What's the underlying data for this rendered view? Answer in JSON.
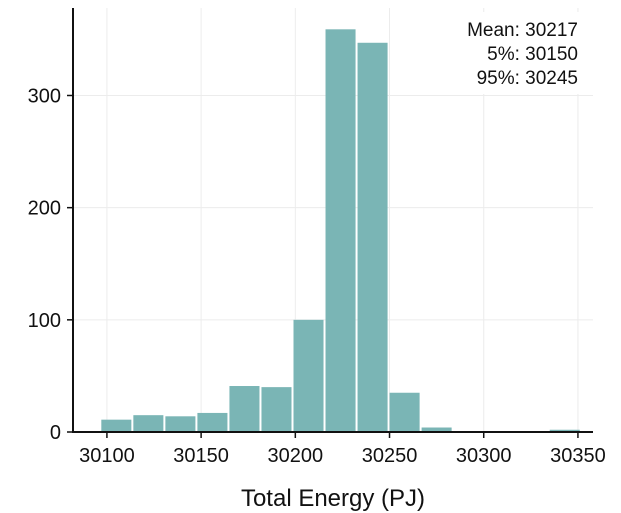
{
  "chart_data": {
    "type": "bar",
    "title": "",
    "xlabel": "Total Energy (PJ)",
    "ylabel": "",
    "x_ticks": [
      30100,
      30150,
      30200,
      30250,
      30300,
      30350
    ],
    "y_ticks": [
      0,
      100,
      200,
      300
    ],
    "xlim": [
      30082,
      30358
    ],
    "ylim": [
      0,
      378
    ],
    "bin_width": 17,
    "bar_color": "#7ab5b5",
    "grid": true,
    "bins": [
      {
        "x": 30105,
        "count": 11
      },
      {
        "x": 30122,
        "count": 15
      },
      {
        "x": 30139,
        "count": 14
      },
      {
        "x": 30156,
        "count": 17
      },
      {
        "x": 30173,
        "count": 41
      },
      {
        "x": 30190,
        "count": 40
      },
      {
        "x": 30207,
        "count": 100
      },
      {
        "x": 30224,
        "count": 359
      },
      {
        "x": 30241,
        "count": 347
      },
      {
        "x": 30258,
        "count": 35
      },
      {
        "x": 30275,
        "count": 4
      },
      {
        "x": 30292,
        "count": 0
      },
      {
        "x": 30309,
        "count": 0
      },
      {
        "x": 30326,
        "count": 0
      },
      {
        "x": 30343,
        "count": 2
      }
    ],
    "annotations": [
      "Mean: 30217",
      "5%: 30150",
      "95%: 30245"
    ]
  }
}
